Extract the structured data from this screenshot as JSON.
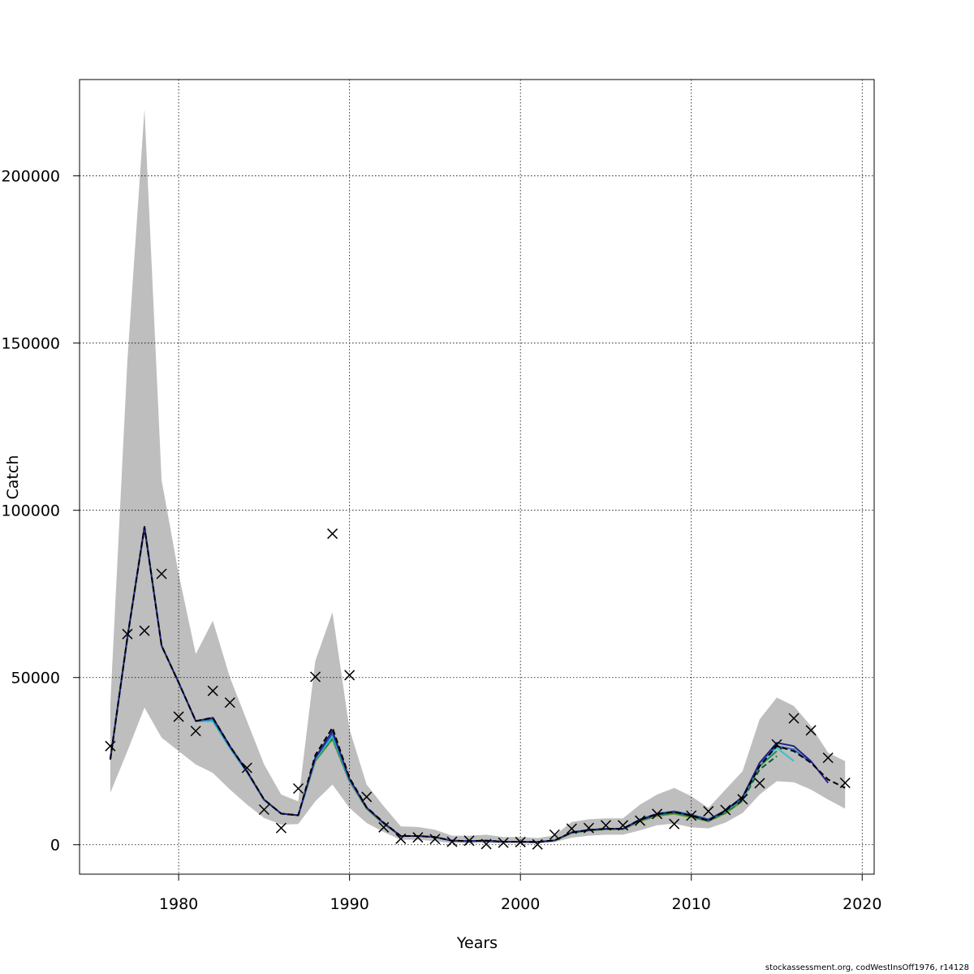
{
  "chart_data": {
    "type": "line",
    "xlabel": "Years",
    "ylabel": "Catch",
    "xlim": [
      1974.2,
      2020.7
    ],
    "ylim": [
      -8800,
      228800
    ],
    "x_ticks": [
      1980,
      1990,
      2000,
      2010,
      2020
    ],
    "y_ticks": [
      0,
      50000,
      100000,
      150000,
      200000
    ],
    "grid": true,
    "years": [
      1976,
      1977,
      1978,
      1979,
      1980,
      1981,
      1982,
      1983,
      1984,
      1985,
      1986,
      1987,
      1988,
      1989,
      1990,
      1991,
      1992,
      1993,
      1994,
      1995,
      1996,
      1997,
      1998,
      1999,
      2000,
      2001,
      2002,
      2003,
      2004,
      2005,
      2006,
      2007,
      2008,
      2009,
      2010,
      2011,
      2012,
      2013,
      2014,
      2015,
      2016,
      2017,
      2018,
      2019
    ],
    "confidence_band": {
      "upper": [
        42000,
        145000,
        220000,
        109000,
        81000,
        57000,
        67000,
        50000,
        37000,
        24000,
        15000,
        13000,
        55000,
        69500,
        34500,
        18000,
        11500,
        5500,
        5300,
        4500,
        2700,
        2700,
        3000,
        2300,
        2300,
        2000,
        2800,
        6800,
        7600,
        7900,
        7900,
        12000,
        15000,
        17000,
        14500,
        11000,
        16500,
        22000,
        37500,
        44000,
        41500,
        35500,
        27500,
        25000
      ],
      "lower": [
        15500,
        28000,
        41000,
        32000,
        28000,
        24000,
        21500,
        16500,
        12000,
        8000,
        6000,
        6200,
        13000,
        18000,
        11000,
        6500,
        3800,
        1500,
        1500,
        1100,
        500,
        500,
        500,
        400,
        400,
        400,
        800,
        2100,
        2700,
        3000,
        3000,
        4300,
        5800,
        6300,
        5200,
        4900,
        6600,
        9500,
        15000,
        19000,
        18700,
        16500,
        13500,
        10800
      ]
    },
    "series": [
      {
        "color": "#000000",
        "dashed": true,
        "values": [
          25500,
          62000,
          95000,
          59500,
          48500,
          37000,
          38000,
          29500,
          22000,
          13500,
          9300,
          8800,
          26800,
          35000,
          20000,
          11200,
          6600,
          2600,
          2600,
          2300,
          1200,
          1100,
          1200,
          900,
          900,
          800,
          1300,
          3700,
          4400,
          4800,
          4800,
          7500,
          9200,
          9800,
          8700,
          7200,
          10100,
          14200,
          23500,
          29500,
          28000,
          24500,
          19500,
          17000
        ]
      },
      {
        "color": "#2a1f8a",
        "values": [
          25500,
          62000,
          95000,
          59500,
          48500,
          37000,
          38000,
          29500,
          22000,
          13500,
          9300,
          8800,
          26000,
          34000,
          19700,
          11100,
          6500,
          2600,
          2600,
          2300,
          1200,
          1100,
          1200,
          900,
          900,
          800,
          1300,
          3700,
          4400,
          4800,
          4800,
          7400,
          9100,
          9800,
          8800,
          7400,
          10300,
          14300,
          24500,
          30500,
          29500,
          25000,
          18500
        ]
      },
      {
        "color": "#1f6fb8",
        "values": [
          25500,
          62000,
          95000,
          59500,
          48500,
          37000,
          37500,
          29200,
          21800,
          13400,
          9300,
          8800,
          25800,
          33200,
          19500,
          11000,
          6400,
          2600,
          2600,
          2300,
          1200,
          1100,
          1200,
          900,
          900,
          800,
          1300,
          3700,
          4400,
          4800,
          4800,
          7600,
          9300,
          10000,
          9000,
          7600,
          10200,
          14000,
          24500,
          29500,
          28500,
          24500
        ]
      },
      {
        "color": "#35c4c4",
        "values": [
          25500,
          62000,
          95000,
          59500,
          48500,
          37000,
          37000,
          29000,
          21700,
          13400,
          9300,
          8800,
          25500,
          32500,
          19300,
          11000,
          6400,
          2600,
          2600,
          2300,
          1200,
          1100,
          1200,
          900,
          900,
          800,
          1300,
          3700,
          4400,
          4800,
          4800,
          7500,
          9200,
          9800,
          8900,
          7500,
          10000,
          13800,
          24500,
          29000,
          25000
        ]
      },
      {
        "color": "#1e8f5e",
        "values": [
          25500,
          62000,
          95000,
          59500,
          48500,
          37000,
          37000,
          29000,
          21700,
          13400,
          9300,
          8800,
          25300,
          32000,
          19200,
          10900,
          6300,
          2600,
          2600,
          2300,
          1200,
          1100,
          1200,
          900,
          900,
          800,
          1300,
          3700,
          4300,
          4700,
          4700,
          7300,
          8900,
          9500,
          8500,
          7200,
          9800,
          13500,
          23500,
          28000
        ]
      },
      {
        "color": "#0c5a2a",
        "dashed": true,
        "values": [
          25500,
          62000,
          95000,
          59500,
          48500,
          37000,
          37000,
          29000,
          21700,
          13400,
          9300,
          8800,
          25300,
          31800,
          19100,
          10900,
          6300,
          2600,
          2600,
          2300,
          1200,
          1100,
          1200,
          900,
          900,
          800,
          1300,
          3600,
          4300,
          4700,
          4700,
          7300,
          8900,
          9500,
          8500,
          7100,
          9600,
          13300,
          22500,
          26500
        ]
      },
      {
        "color": "#7a9a2a",
        "values": [
          25500,
          62000,
          95000,
          59500,
          48500,
          37000,
          37000,
          29000,
          21700,
          13400,
          9300,
          8800,
          25000,
          31500,
          19000,
          10800,
          6200,
          2600,
          2600,
          2300,
          1200,
          1100,
          1200,
          900,
          900,
          800,
          1200,
          3500,
          4200,
          4600,
          4600,
          7000,
          8600,
          9200,
          8200,
          7000,
          9400,
          13000
        ]
      }
    ],
    "observations": {
      "years": [
        1976,
        1977,
        1978,
        1979,
        1980,
        1981,
        1982,
        1983,
        1984,
        1985,
        1986,
        1987,
        1988,
        1989,
        1990,
        1991,
        1992,
        1993,
        1994,
        1995,
        1996,
        1997,
        1998,
        1999,
        2000,
        2001,
        2002,
        2003,
        2004,
        2005,
        2006,
        2007,
        2008,
        2009,
        2010,
        2011,
        2012,
        2013,
        2014,
        2015,
        2016,
        2017,
        2018,
        2019
      ],
      "values": [
        29500,
        63000,
        64000,
        81000,
        38300,
        34000,
        46000,
        42500,
        23000,
        10500,
        5000,
        16800,
        50200,
        93000,
        50700,
        14300,
        5200,
        1800,
        2200,
        1700,
        900,
        1200,
        200,
        600,
        800,
        100,
        3000,
        4800,
        5000,
        5800,
        5800,
        7200,
        9200,
        6200,
        8700,
        10000,
        10400,
        13600,
        18400,
        30000,
        37800,
        34200,
        26000,
        18500
      ]
    }
  },
  "footer_text": "stockassessment.org, codWestInsOff1976, r14128"
}
